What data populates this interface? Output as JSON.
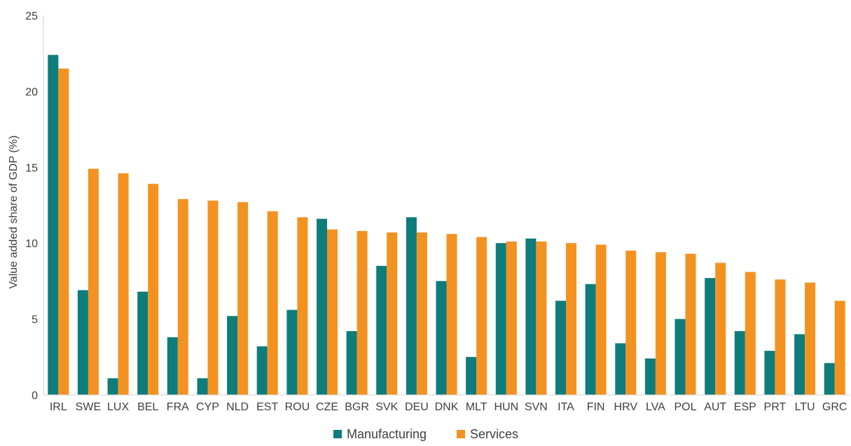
{
  "chart_data": {
    "type": "bar",
    "ylabel": "Value added share of GDP (%)",
    "ylim": [
      0,
      25
    ],
    "yticks": [
      0,
      5,
      10,
      15,
      20,
      25
    ],
    "grid": false,
    "legend_position": "bottom-center",
    "categories": [
      "IRL",
      "SWE",
      "LUX",
      "BEL",
      "FRA",
      "CYP",
      "NLD",
      "EST",
      "ROU",
      "CZE",
      "BGR",
      "SVK",
      "DEU",
      "DNK",
      "MLT",
      "HUN",
      "SVN",
      "ITA",
      "FIN",
      "HRV",
      "LVA",
      "POL",
      "AUT",
      "ESP",
      "PRT",
      "LTU",
      "GRC"
    ],
    "series": [
      {
        "name": "Manufacturing",
        "color": "#0e7c7b",
        "values": [
          22.4,
          6.9,
          1.1,
          6.8,
          3.8,
          1.1,
          5.2,
          3.2,
          5.6,
          11.6,
          4.2,
          8.5,
          11.7,
          7.5,
          2.5,
          10.0,
          10.3,
          6.2,
          7.3,
          3.4,
          2.4,
          5.0,
          7.7,
          4.2,
          2.9,
          4.0,
          2.1
        ]
      },
      {
        "name": "Services",
        "color": "#f39220",
        "values": [
          21.5,
          14.9,
          14.6,
          13.9,
          12.9,
          12.8,
          12.7,
          12.1,
          11.7,
          10.9,
          10.8,
          10.7,
          10.7,
          10.6,
          10.4,
          10.1,
          10.1,
          10.0,
          9.9,
          9.5,
          9.4,
          9.3,
          8.7,
          8.1,
          7.6,
          7.4,
          6.2
        ]
      }
    ]
  }
}
